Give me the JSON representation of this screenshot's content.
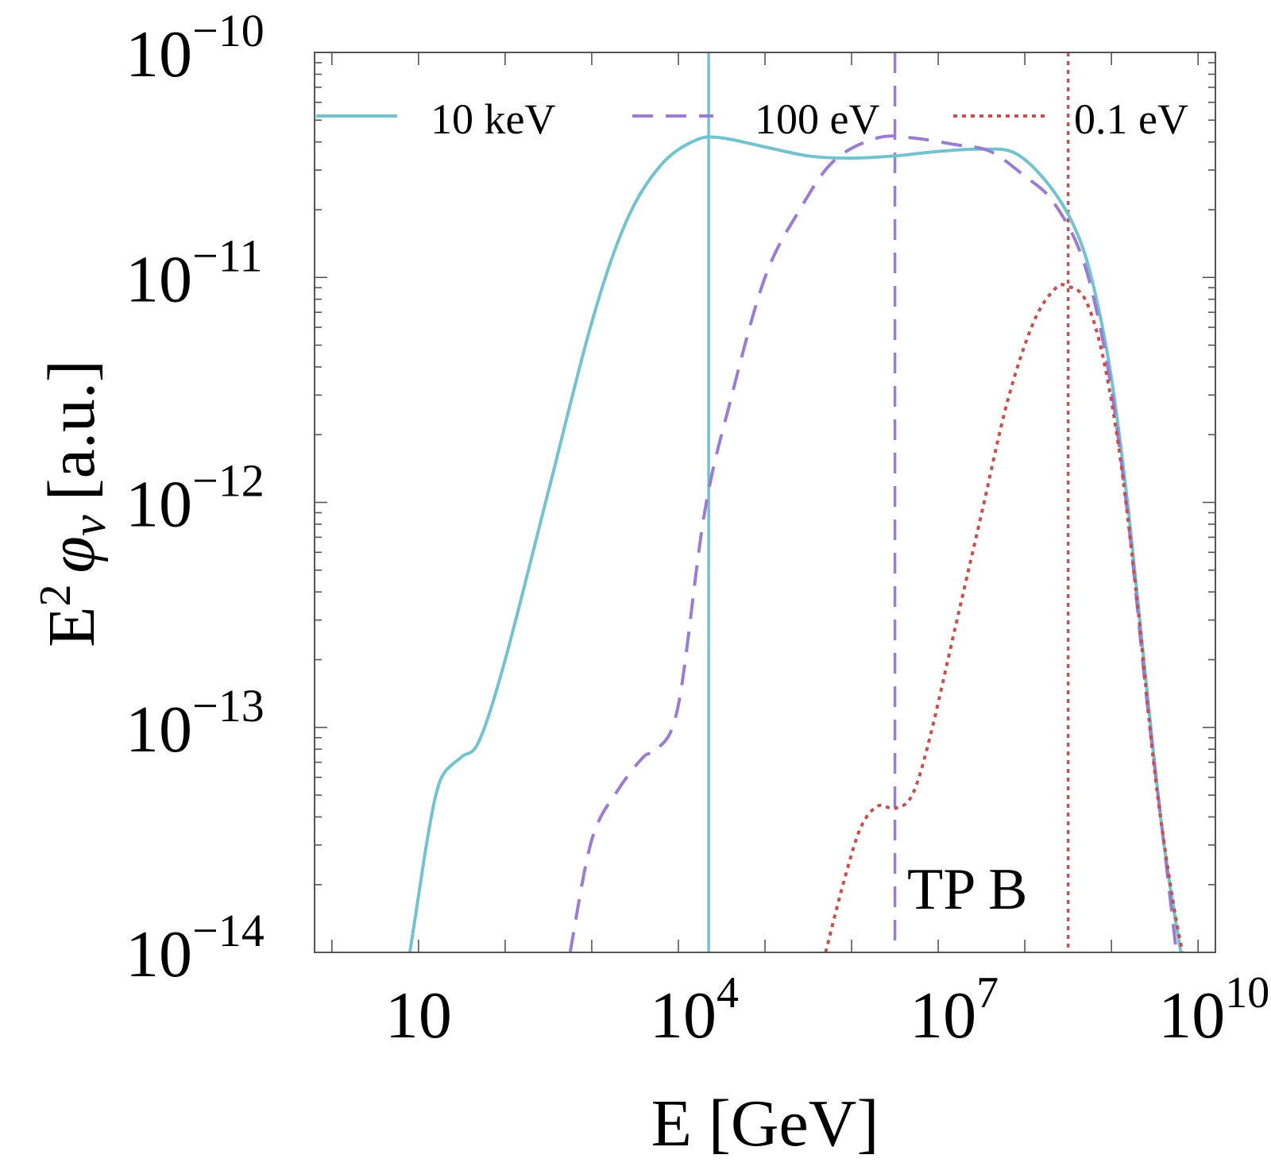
{
  "chart_data": {
    "type": "line",
    "title": "",
    "xlabel": "E [GeV]",
    "ylabel": "E² φ_ν [a.u.]",
    "ylabel_parts": {
      "base": "E",
      "sup": "2",
      "phi": "φ",
      "sub": "ν",
      "unit": "[a.u.]"
    },
    "xscale": "log",
    "yscale": "log",
    "xlim_log10": [
      -0.2,
      10.2
    ],
    "ylim_log10": [
      -14,
      -10
    ],
    "x_tick_labels": [
      {
        "log10": 1,
        "base": "10",
        "exp": ""
      },
      {
        "log10": 4,
        "base": "10",
        "exp": "4"
      },
      {
        "log10": 7,
        "base": "10",
        "exp": "7"
      },
      {
        "log10": 10,
        "base": "10",
        "exp": "10"
      }
    ],
    "y_tick_labels": [
      {
        "log10": -10,
        "base": "10",
        "exp": "−10"
      },
      {
        "log10": -11,
        "base": "10",
        "exp": "−11"
      },
      {
        "log10": -12,
        "base": "10",
        "exp": "−12"
      },
      {
        "log10": -13,
        "base": "10",
        "exp": "−13"
      },
      {
        "log10": -14,
        "base": "10",
        "exp": "−14"
      }
    ],
    "legend_position": "top",
    "annotation": "TP B",
    "series": [
      {
        "name": "10 keV",
        "color": "#72c3cf",
        "style": "solid",
        "marker_line_log10E": 4.35,
        "points_log10": [
          [
            0.9,
            -14.0
          ],
          [
            1.0,
            -13.75
          ],
          [
            1.1,
            -13.5
          ],
          [
            1.2,
            -13.3
          ],
          [
            1.3,
            -13.2
          ],
          [
            1.5,
            -13.13
          ],
          [
            1.7,
            -13.06
          ],
          [
            2.0,
            -12.7
          ],
          [
            2.5,
            -11.95
          ],
          [
            3.0,
            -11.2
          ],
          [
            3.4,
            -10.75
          ],
          [
            3.8,
            -10.5
          ],
          [
            4.2,
            -10.39
          ],
          [
            4.5,
            -10.38
          ],
          [
            5.0,
            -10.42
          ],
          [
            5.5,
            -10.46
          ],
          [
            6.0,
            -10.47
          ],
          [
            6.5,
            -10.46
          ],
          [
            7.0,
            -10.44
          ],
          [
            7.5,
            -10.43
          ],
          [
            7.9,
            -10.45
          ],
          [
            8.3,
            -10.6
          ],
          [
            8.6,
            -10.8
          ],
          [
            8.8,
            -11.05
          ],
          [
            9.0,
            -11.45
          ],
          [
            9.2,
            -12.05
          ],
          [
            9.4,
            -12.8
          ],
          [
            9.6,
            -13.5
          ],
          [
            9.8,
            -14.0
          ]
        ]
      },
      {
        "name": "100 eV",
        "color": "#9a7cd0",
        "style": "dashed",
        "marker_line_log10E": 6.5,
        "points_log10": [
          [
            2.75,
            -14.0
          ],
          [
            3.0,
            -13.5
          ],
          [
            3.3,
            -13.28
          ],
          [
            3.6,
            -13.13
          ],
          [
            3.75,
            -13.1
          ],
          [
            4.0,
            -12.9
          ],
          [
            4.3,
            -12.05
          ],
          [
            4.6,
            -11.55
          ],
          [
            5.0,
            -11.0
          ],
          [
            5.4,
            -10.7
          ],
          [
            5.8,
            -10.48
          ],
          [
            6.3,
            -10.38
          ],
          [
            6.7,
            -10.38
          ],
          [
            7.2,
            -10.41
          ],
          [
            7.6,
            -10.44
          ],
          [
            8.0,
            -10.55
          ],
          [
            8.3,
            -10.65
          ],
          [
            8.6,
            -10.85
          ],
          [
            8.8,
            -11.1
          ],
          [
            9.0,
            -11.5
          ],
          [
            9.2,
            -12.1
          ],
          [
            9.4,
            -12.85
          ],
          [
            9.6,
            -13.5
          ],
          [
            9.75,
            -14.0
          ]
        ]
      },
      {
        "name": "0.1 eV",
        "color": "#c64f4f",
        "style": "dotted",
        "marker_line_log10E": 8.5,
        "points_log10": [
          [
            5.7,
            -14.0
          ],
          [
            5.9,
            -13.7
          ],
          [
            6.1,
            -13.45
          ],
          [
            6.3,
            -13.35
          ],
          [
            6.5,
            -13.36
          ],
          [
            6.7,
            -13.3
          ],
          [
            6.9,
            -13.05
          ],
          [
            7.2,
            -12.55
          ],
          [
            7.5,
            -12.05
          ],
          [
            7.8,
            -11.55
          ],
          [
            8.1,
            -11.2
          ],
          [
            8.35,
            -11.05
          ],
          [
            8.5,
            -11.04
          ],
          [
            8.7,
            -11.1
          ],
          [
            8.9,
            -11.35
          ],
          [
            9.1,
            -11.8
          ],
          [
            9.3,
            -12.45
          ],
          [
            9.5,
            -13.2
          ],
          [
            9.7,
            -13.75
          ],
          [
            9.82,
            -14.0
          ]
        ]
      }
    ]
  }
}
